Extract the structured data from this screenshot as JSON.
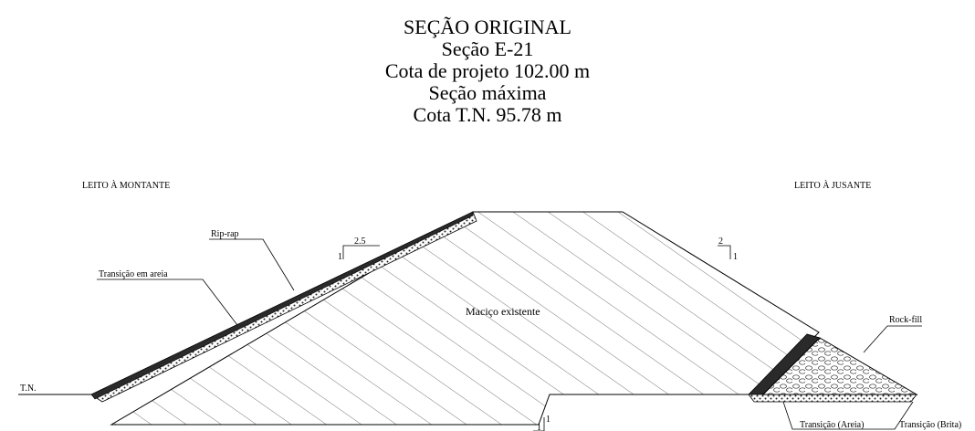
{
  "title": {
    "line1": "SEÇÃO ORIGINAL",
    "line2": "Seção E-21",
    "line3": "Cota de projeto 102.00 m",
    "line4": "Seção máxima",
    "line5": "Cota T.N. 95.78 m"
  },
  "labels": {
    "upstream": "LEITO À MONTANTE",
    "downstream": "LEITO À JUSANTE",
    "tn": "T.N.",
    "riprap": "Rip-rap",
    "transition_sand": "Transição em areia",
    "body": "Maciço existente",
    "rockfill": "Rock-fill",
    "trans_areia": "Transição (Areia)",
    "trans_brita": "Transição (Brita)"
  },
  "slopes": {
    "upstream_run": "2.5",
    "upstream_rise": "1",
    "downstream_run": "2",
    "downstream_rise": "1",
    "bottom_rise": "1",
    "bottom_run": "1"
  },
  "colors": {
    "line": "#000000",
    "hatch": "#555555",
    "riprap": "#2a2a2a"
  }
}
